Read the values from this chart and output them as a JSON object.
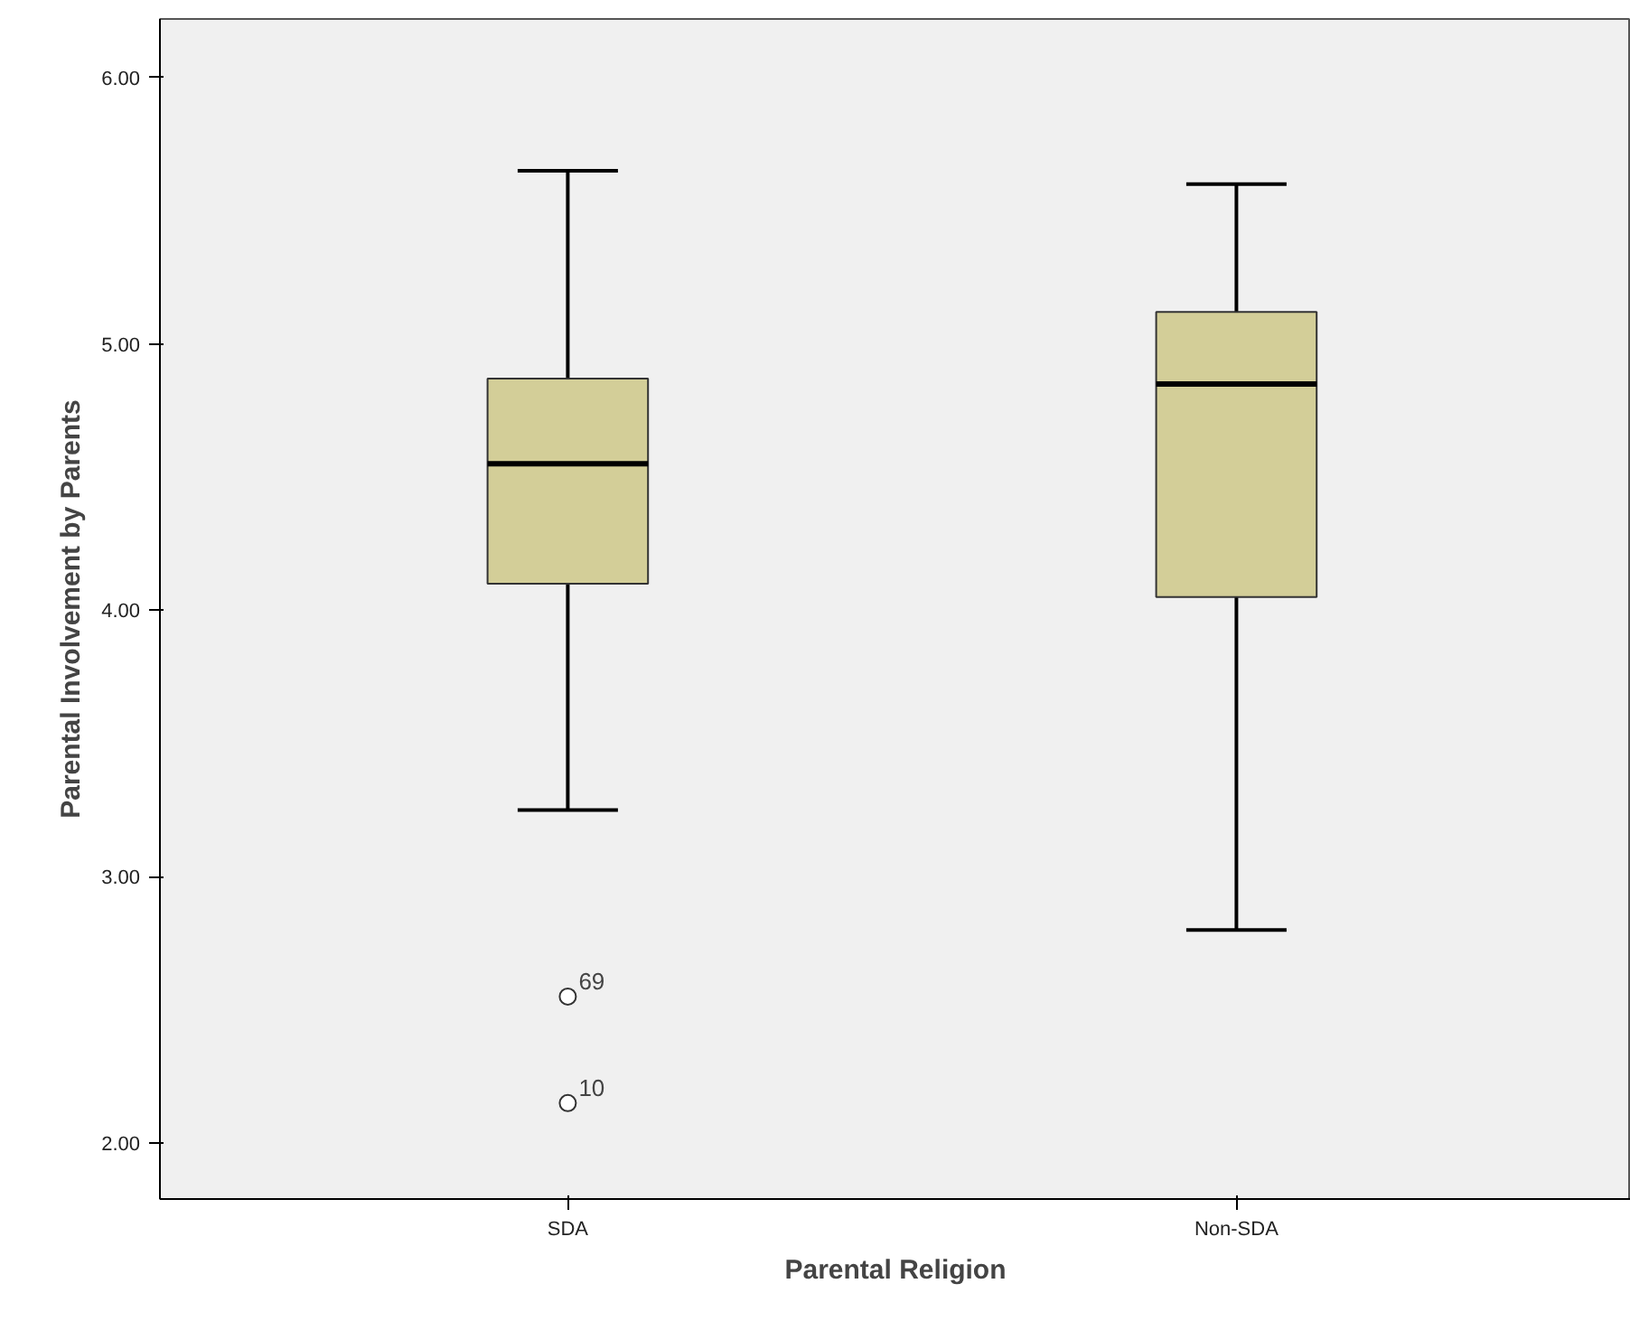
{
  "chart_data": {
    "type": "box",
    "xlabel": "Parental Religion",
    "ylabel": "Parental Involvement by Parents",
    "categories": [
      "SDA",
      "Non-SDA"
    ],
    "boxes": [
      {
        "low": 3.25,
        "q1": 4.1,
        "median": 4.55,
        "q3": 4.87,
        "high": 5.65,
        "outliers": [
          2.55,
          2.15
        ]
      },
      {
        "low": 2.8,
        "q1": 4.05,
        "median": 4.85,
        "q3": 5.12,
        "high": 5.6
      }
    ],
    "color": "#d3ce98",
    "ylim": [
      1.79,
      6.22
    ],
    "yticks": [
      {
        "value": 2,
        "label": "2.00"
      },
      {
        "value": 3,
        "label": "3.00"
      },
      {
        "value": 4,
        "label": "4.00"
      },
      {
        "value": 5,
        "label": "5.00"
      },
      {
        "value": 6,
        "label": "6.00"
      }
    ],
    "annotations": [
      "69",
      "10"
    ],
    "grid": false
  }
}
